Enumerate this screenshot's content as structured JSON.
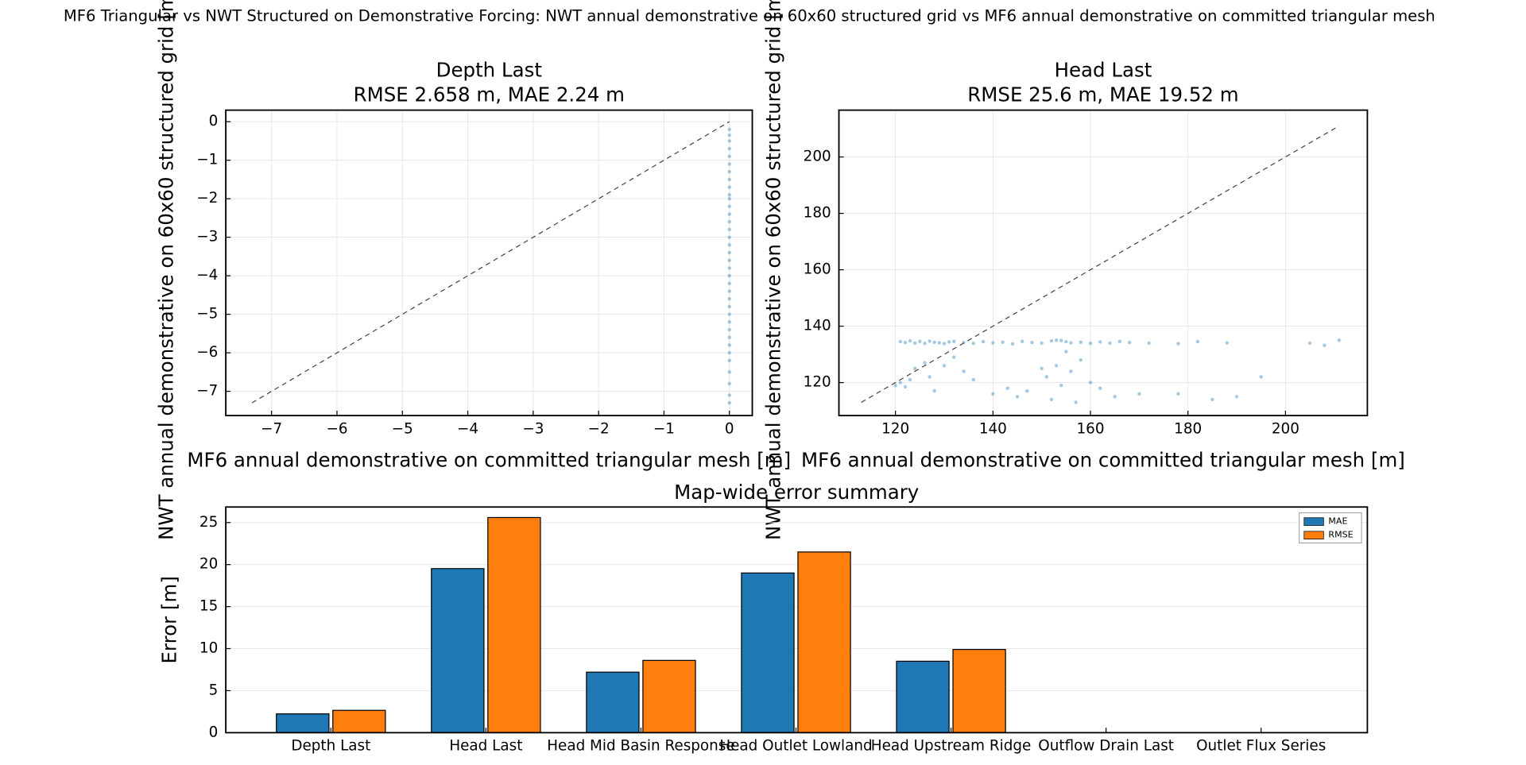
{
  "title": "MF6 Triangular vs NWT Structured on Demonstrative Forcing: NWT annual demonstrative on 60x60 structured grid vs MF6 annual demonstrative on committed triangular mesh",
  "chart_data": [
    {
      "type": "scatter",
      "title": "Depth Last",
      "subtitle": "RMSE 2.658 m, MAE 2.24 m",
      "xlabel": "MF6 annual demonstrative on committed triangular mesh [m]",
      "ylabel": "NWT annual demonstrative on 60x60 structured grid [m]",
      "color": "#1f77b4",
      "grid": true,
      "xlim": [
        -7.7,
        0.35
      ],
      "ylim": [
        -7.63,
        0.3
      ],
      "xticks": [
        {
          "value": -7,
          "label": "−7"
        },
        {
          "value": -6,
          "label": "−6"
        },
        {
          "value": -5,
          "label": "−5"
        },
        {
          "value": -4,
          "label": "−4"
        },
        {
          "value": -3,
          "label": "−3"
        },
        {
          "value": -2,
          "label": "−2"
        },
        {
          "value": -1,
          "label": "−1"
        },
        0
      ],
      "yticks": [
        0,
        {
          "value": -1,
          "label": "−1"
        },
        {
          "value": -2,
          "label": "−2"
        },
        {
          "value": -3,
          "label": "−3"
        },
        {
          "value": -4,
          "label": "−4"
        },
        {
          "value": -5,
          "label": "−5"
        },
        {
          "value": -6,
          "label": "−6"
        },
        {
          "value": -7,
          "label": "−7"
        }
      ],
      "x": [
        0,
        0,
        0,
        0,
        0,
        0,
        0,
        0,
        0,
        0,
        0,
        0,
        0,
        0,
        0,
        0,
        0,
        0,
        0,
        0,
        0,
        0,
        0,
        0,
        0,
        0,
        0,
        0,
        0,
        0,
        0,
        0,
        0,
        0,
        0,
        0
      ],
      "values": [
        -0.2,
        -0.35,
        -0.5,
        -0.7,
        -0.9,
        -1.1,
        -1.3,
        -1.5,
        -1.7,
        -1.9,
        -2.0,
        -2.2,
        -2.4,
        -2.6,
        -2.8,
        -3.0,
        -3.2,
        -3.4,
        -3.6,
        -3.8,
        -4.0,
        -4.2,
        -4.4,
        -4.6,
        -4.8,
        -5.0,
        -5.2,
        -5.4,
        -5.6,
        -5.8,
        -6.0,
        -6.2,
        -6.5,
        -6.8,
        -7.1,
        -7.3
      ]
    },
    {
      "type": "scatter",
      "title": "Head Last",
      "subtitle": "RMSE 25.6 m, MAE 19.52 m",
      "xlabel": "MF6 annual demonstrative on committed triangular mesh [m]",
      "ylabel": "NWT annual demonstrative on 60x60 structured grid [m]",
      "color": "#1f77b4",
      "grid": true,
      "xlim": [
        108.4,
        216.8
      ],
      "ylim": [
        108.3,
        216.6
      ],
      "xticks": [
        120,
        140,
        160,
        180,
        200
      ],
      "yticks": [
        120,
        140,
        160,
        180,
        200
      ],
      "x": [
        121,
        122,
        123,
        124,
        125,
        126,
        127,
        128,
        129,
        130,
        131,
        132,
        134,
        136,
        138,
        140,
        142,
        144,
        146,
        148,
        150,
        152,
        153,
        154,
        155,
        156,
        158,
        160,
        162,
        164,
        166,
        168,
        172,
        178,
        182,
        188,
        205,
        208,
        211,
        120,
        121,
        122,
        123,
        124,
        126,
        127,
        128,
        130,
        132,
        134,
        136,
        140,
        143,
        145,
        147,
        150,
        151,
        152,
        153,
        154,
        155,
        156,
        157,
        158,
        160,
        162,
        165,
        170,
        178,
        185,
        190,
        195
      ],
      "values": [
        134.5,
        134.2,
        134.8,
        134,
        134.6,
        133.9,
        134.7,
        134.3,
        134.1,
        133.8,
        134.4,
        134.6,
        134.2,
        133.9,
        134.5,
        134.1,
        134.3,
        133.7,
        134.6,
        134.2,
        134,
        134.8,
        135,
        134.9,
        134.5,
        134.1,
        134.3,
        133.9,
        134.4,
        134,
        134.6,
        134.2,
        134,
        133.8,
        134.5,
        134.1,
        134,
        133.2,
        135,
        119,
        120,
        118.5,
        121,
        125,
        127,
        122,
        117,
        126,
        129,
        124,
        121,
        116,
        118,
        115,
        117,
        125,
        122,
        114,
        126,
        119,
        131,
        124,
        113,
        128,
        120,
        118,
        115,
        116,
        116,
        114,
        115,
        122
      ]
    },
    {
      "type": "bar",
      "title": "Map-wide error summary",
      "ylabel": "Error [m]",
      "grid": true,
      "legend": "upper right",
      "categories": [
        "Depth Last",
        "Head Last",
        "Head Mid Basin Response",
        "Head Outlet Lowland",
        "Head Upstream Ridge",
        "Outflow Drain Last",
        "Outlet Flux Series"
      ],
      "series": [
        {
          "name": "MAE",
          "color": "#1f77b4",
          "values": [
            2.24,
            19.52,
            7.2,
            19.0,
            8.5,
            null,
            null
          ]
        },
        {
          "name": "RMSE",
          "color": "#ff7f0e",
          "values": [
            2.658,
            25.6,
            8.6,
            21.5,
            9.9,
            null,
            null
          ]
        }
      ],
      "ylim": [
        0,
        26.85
      ],
      "yticks": [
        0,
        5,
        10,
        15,
        20,
        25
      ]
    }
  ]
}
